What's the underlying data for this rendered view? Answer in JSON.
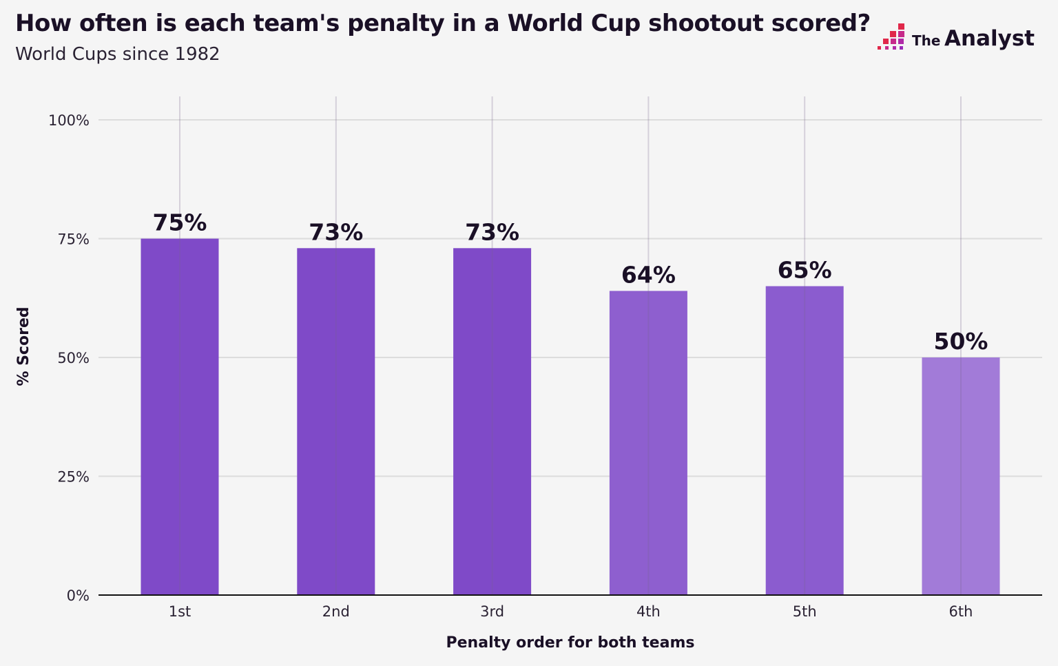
{
  "header": {
    "title": "How often is each team's penalty in a World Cup shootout scored?",
    "subtitle": "World Cups since 1982",
    "logo": {
      "small": "The",
      "large": "Analyst"
    }
  },
  "chart_data": {
    "type": "bar",
    "title": "How often is each team's penalty in a World Cup shootout scored?",
    "subtitle": "World Cups since 1982",
    "xlabel": "Penalty order for both teams",
    "ylabel": "% Scored",
    "categories": [
      "1st",
      "2nd",
      "3rd",
      "4th",
      "5th",
      "6th"
    ],
    "values": [
      75,
      73,
      73,
      64,
      65,
      50
    ],
    "data_labels": [
      "75%",
      "73%",
      "73%",
      "64%",
      "65%",
      "50%"
    ],
    "colors": [
      "#7f4ac8",
      "#7f4ac8",
      "#7f4ac8",
      "#8e5fcf",
      "#8b5ccf",
      "#a27bd8"
    ],
    "ylim": [
      0,
      100
    ],
    "yticks": [
      0,
      25,
      50,
      75,
      100
    ],
    "ytick_labels": [
      "0%",
      "25%",
      "50%",
      "75%",
      "100%"
    ],
    "grid": true,
    "legend": "none"
  }
}
